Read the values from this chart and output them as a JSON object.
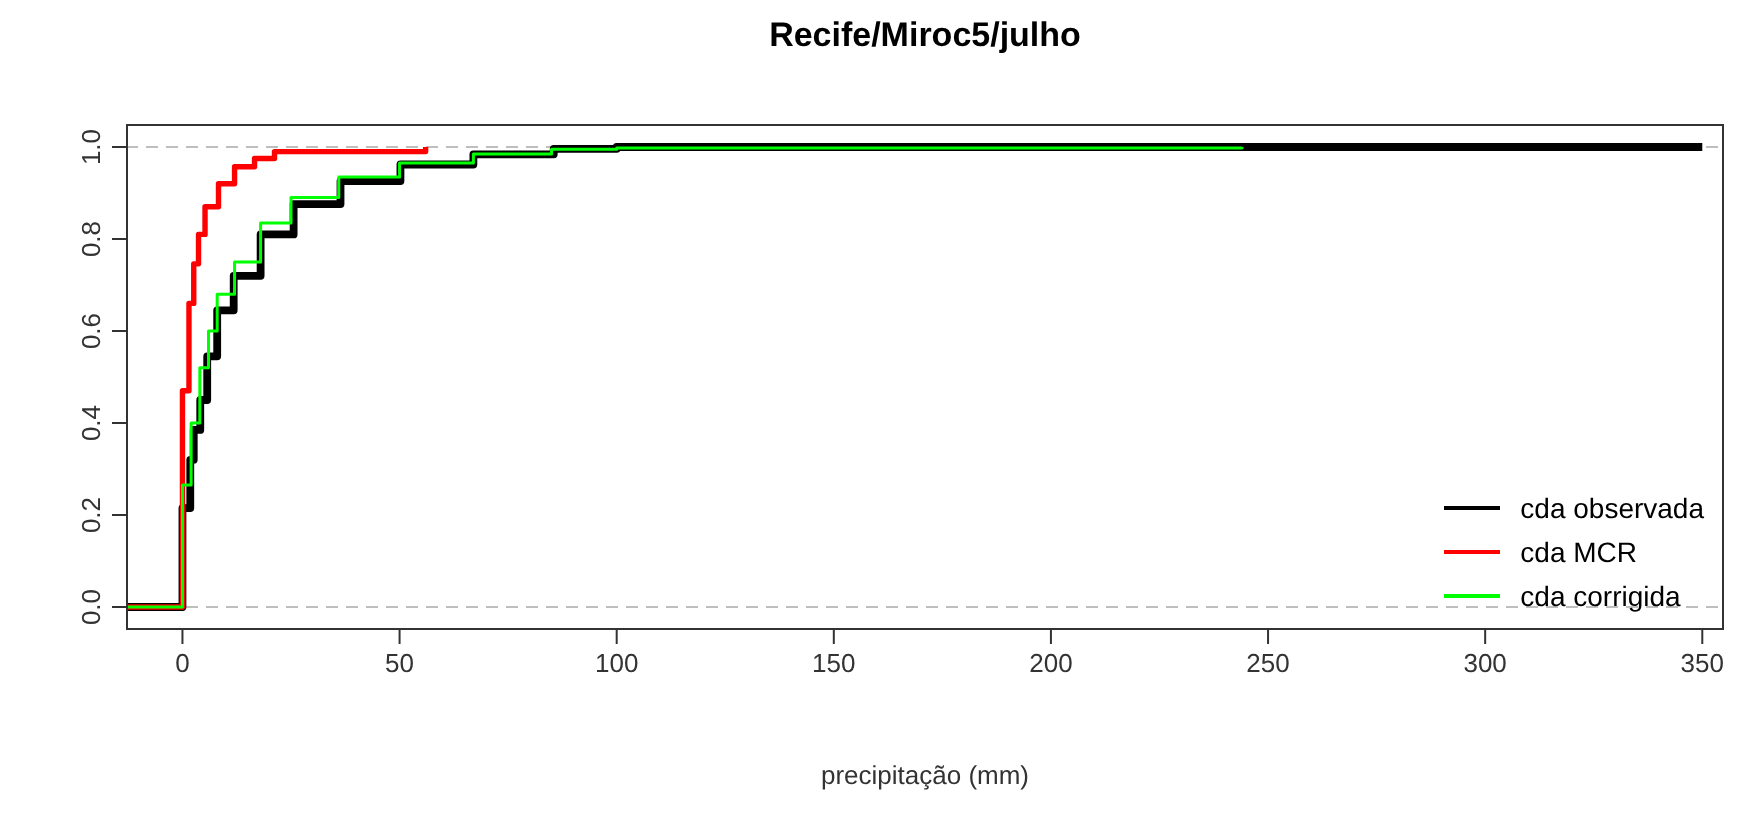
{
  "chart_data": {
    "type": "step",
    "title": "Recife/Miroc5/julho",
    "xlabel": "precipitação (mm)",
    "xlim": [
      -13,
      355
    ],
    "xticks": [
      0,
      50,
      100,
      150,
      200,
      250,
      300,
      350
    ],
    "ylim": [
      -0.05,
      1.05
    ],
    "yticks": [
      {
        "value": 0,
        "label": "0.0"
      },
      {
        "value": 0.2,
        "label": "0.2"
      },
      {
        "value": 0.4,
        "label": "0.4"
      },
      {
        "value": 0.6,
        "label": "0.6"
      },
      {
        "value": 0.8,
        "label": "0.8"
      },
      {
        "value": 1,
        "label": "1.0"
      }
    ],
    "legend": "bottom right",
    "grid": false,
    "ref_lines": [
      {
        "axis": "y",
        "value": 0,
        "color": "#bebebe",
        "line_style": "dashed"
      },
      {
        "axis": "y",
        "value": 1,
        "color": "#bebebe",
        "line_style": "dashed"
      }
    ],
    "series": [
      {
        "name": "cda observada",
        "color": "#000000",
        "x": [
          -13,
          0,
          1.8,
          2.6,
          4.1,
          5.7,
          8,
          11.8,
          18,
          25.6,
          36.4,
          50.2,
          67,
          85.5,
          100,
          350
        ],
        "values": [
          0,
          0.215,
          0.32,
          0.385,
          0.45,
          0.545,
          0.645,
          0.72,
          0.81,
          0.876,
          0.926,
          0.962,
          0.984,
          0.996,
          1,
          1
        ]
      },
      {
        "name": "cda MCR",
        "color": "#ff0000",
        "x": [
          -13,
          0,
          1.5,
          2.6,
          3.7,
          5.2,
          8.3,
          12,
          16.6,
          21.2,
          56
        ],
        "values": [
          0,
          0.47,
          0.66,
          0.746,
          0.81,
          0.87,
          0.92,
          0.957,
          0.975,
          0.99,
          1
        ]
      },
      {
        "name": "cda corrigida",
        "color": "#00ff00",
        "x": [
          -13,
          0,
          2,
          4,
          6,
          8,
          12,
          18,
          25,
          36,
          50,
          67,
          85,
          100,
          244
        ],
        "values": [
          0,
          0.265,
          0.4,
          0.52,
          0.6,
          0.68,
          0.75,
          0.835,
          0.89,
          0.935,
          0.965,
          0.985,
          0.995,
          0.998,
          1
        ]
      }
    ]
  }
}
